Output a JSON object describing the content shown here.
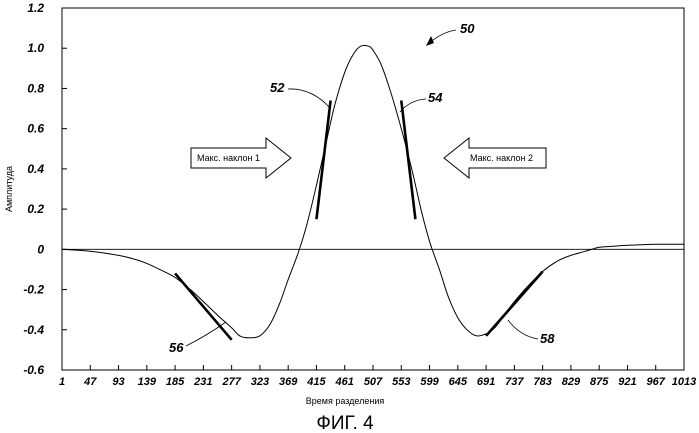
{
  "chart_data": {
    "type": "line",
    "title": "",
    "xlabel": "Время разделения",
    "ylabel": "Амплитуда",
    "xlim": [
      1,
      1013
    ],
    "ylim": [
      -0.6,
      1.2
    ],
    "x_ticks": [
      "1",
      "47",
      "93",
      "139",
      "185",
      "231",
      "277",
      "323",
      "369",
      "415",
      "461",
      "507",
      "553",
      "599",
      "645",
      "691",
      "737",
      "783",
      "829",
      "875",
      "921",
      "967",
      "1013"
    ],
    "y_ticks": [
      "1.2",
      "1.0",
      "0.8",
      "0.6",
      "0.4",
      "0.2",
      "0",
      "-0.2",
      "-0.4",
      "-0.6"
    ],
    "y_tick_values": [
      1.2,
      1.0,
      0.8,
      0.6,
      0.4,
      0.2,
      0,
      -0.2,
      -0.4,
      -0.6
    ],
    "series": [
      {
        "x": [
          1,
          47,
          93,
          120,
          139,
          160,
          185,
          210,
          231,
          255,
          277,
          290,
          305,
          323,
          340,
          355,
          369,
          385,
          400,
          415,
          430,
          445,
          461,
          475,
          487,
          500,
          507,
          520,
          535,
          553,
          570,
          585,
          599,
          615,
          630,
          645,
          660,
          675,
          691,
          705,
          720,
          737,
          760,
          783,
          806,
          829,
          852,
          875,
          898,
          921,
          967,
          1013
        ],
        "y": [
          0,
          -0.01,
          -0.03,
          -0.05,
          -0.07,
          -0.1,
          -0.14,
          -0.2,
          -0.26,
          -0.33,
          -0.39,
          -0.43,
          -0.44,
          -0.43,
          -0.37,
          -0.27,
          -0.15,
          -0.02,
          0.13,
          0.32,
          0.52,
          0.72,
          0.88,
          0.97,
          1.01,
          1.01,
          0.99,
          0.92,
          0.79,
          0.6,
          0.4,
          0.2,
          0.04,
          -0.1,
          -0.24,
          -0.34,
          -0.4,
          -0.43,
          -0.42,
          -0.39,
          -0.33,
          -0.26,
          -0.18,
          -0.11,
          -0.06,
          -0.03,
          -0.01,
          0.01,
          0.015,
          0.02,
          0.025,
          0.025
        ]
      }
    ],
    "annotations": [
      {
        "id": "50",
        "text": "50"
      },
      {
        "id": "52",
        "text": "52"
      },
      {
        "id": "54",
        "text": "54"
      },
      {
        "id": "56",
        "text": "56"
      },
      {
        "id": "58",
        "text": "58"
      },
      {
        "id": "arrow1",
        "text": "Макс. наклон 1"
      },
      {
        "id": "arrow2",
        "text": "Макс. наклон 2"
      }
    ],
    "slopes": [
      {
        "x": [
          415,
          438
        ],
        "y": [
          0.15,
          0.74
        ]
      },
      {
        "x": [
          553,
          576
        ],
        "y": [
          0.74,
          0.15
        ]
      },
      {
        "x": [
          185,
          277
        ],
        "y": [
          -0.12,
          -0.45
        ]
      },
      {
        "x": [
          691,
          783
        ],
        "y": [
          -0.43,
          -0.11
        ]
      }
    ],
    "caption": "ФИГ. 4"
  }
}
